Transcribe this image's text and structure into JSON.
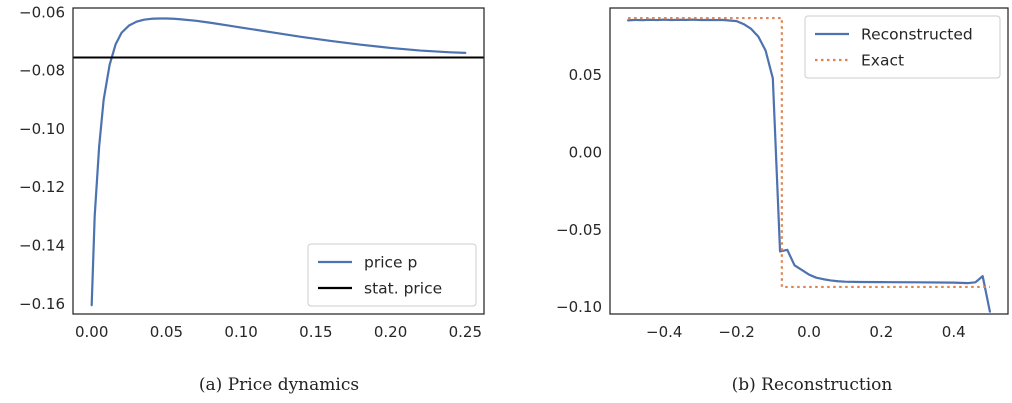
{
  "chart_data": [
    {
      "type": "line",
      "caption": "(a)  Price dynamics",
      "xlim": [
        -0.0125,
        0.2625
      ],
      "ylim": [
        -0.1635,
        -0.0585
      ],
      "xticks": [
        0.0,
        0.05,
        0.1,
        0.15,
        0.2,
        0.25
      ],
      "xtick_labels": [
        "0.00",
        "0.05",
        "0.10",
        "0.15",
        "0.20",
        "0.25"
      ],
      "yticks": [
        -0.16,
        -0.14,
        -0.12,
        -0.1,
        -0.08,
        -0.06
      ],
      "ytick_labels": [
        "−0.16",
        "−0.14",
        "−0.12",
        "−0.10",
        "−0.08",
        "−0.06"
      ],
      "grid": false,
      "legend": "lower-right",
      "series": [
        {
          "name": "price p",
          "color": "#4c72b0",
          "style": "solid",
          "x": [
            0.0,
            0.002,
            0.005,
            0.008,
            0.012,
            0.016,
            0.02,
            0.025,
            0.03,
            0.035,
            0.04,
            0.045,
            0.05,
            0.055,
            0.06,
            0.07,
            0.08,
            0.09,
            0.1,
            0.12,
            0.14,
            0.16,
            0.18,
            0.2,
            0.22,
            0.24,
            0.25
          ],
          "y": [
            -0.1605,
            -0.13,
            -0.106,
            -0.09,
            -0.078,
            -0.071,
            -0.067,
            -0.0645,
            -0.0632,
            -0.0625,
            -0.0622,
            -0.0621,
            -0.0621,
            -0.0622,
            -0.0624,
            -0.0629,
            -0.0636,
            -0.0644,
            -0.0652,
            -0.0668,
            -0.0684,
            -0.0698,
            -0.0711,
            -0.0722,
            -0.0731,
            -0.0737,
            -0.0739
          ]
        },
        {
          "name": "stat. price",
          "color": "#000000",
          "style": "hline",
          "y": -0.0755
        }
      ]
    },
    {
      "type": "line",
      "caption": "(b)  Reconstruction",
      "xlim": [
        -0.55,
        0.55
      ],
      "ylim": [
        -0.1045,
        0.0935
      ],
      "xticks": [
        -0.4,
        -0.2,
        0.0,
        0.2,
        0.4
      ],
      "xtick_labels": [
        "−0.4",
        "−0.2",
        "0.0",
        "0.2",
        "0.4"
      ],
      "yticks": [
        -0.1,
        -0.05,
        0.0,
        0.05
      ],
      "ytick_labels": [
        "−0.10",
        "−0.05",
        "0.00",
        "0.05"
      ],
      "grid": false,
      "legend": "upper-right",
      "series": [
        {
          "name": "Reconstructed",
          "color": "#4c72b0",
          "style": "solid",
          "x": [
            -0.5,
            -0.48,
            -0.46,
            -0.44,
            -0.42,
            -0.4,
            -0.38,
            -0.36,
            -0.34,
            -0.32,
            -0.3,
            -0.28,
            -0.26,
            -0.24,
            -0.22,
            -0.2,
            -0.18,
            -0.16,
            -0.14,
            -0.12,
            -0.1,
            -0.08,
            -0.06,
            -0.04,
            -0.02,
            0.0,
            0.02,
            0.04,
            0.06,
            0.08,
            0.1,
            0.14,
            0.2,
            0.3,
            0.4,
            0.44,
            0.46,
            0.48,
            0.5
          ],
          "y": [
            0.0855,
            0.0858,
            0.0856,
            0.0859,
            0.0857,
            0.086,
            0.0857,
            0.0859,
            0.0858,
            0.086,
            0.0857,
            0.0858,
            0.0857,
            0.0858,
            0.0854,
            0.085,
            0.083,
            0.08,
            0.075,
            0.066,
            0.048,
            -0.064,
            -0.063,
            -0.073,
            -0.076,
            -0.079,
            -0.081,
            -0.082,
            -0.0828,
            -0.0833,
            -0.0836,
            -0.0838,
            -0.0839,
            -0.084,
            -0.0842,
            -0.0845,
            -0.084,
            -0.08,
            -0.103
          ]
        },
        {
          "name": "Exact",
          "color": "#dd8452",
          "style": "dotted",
          "x": [
            -0.5,
            -0.075,
            -0.075,
            0.5
          ],
          "y": [
            0.087,
            0.087,
            -0.087,
            -0.087
          ]
        }
      ]
    }
  ]
}
